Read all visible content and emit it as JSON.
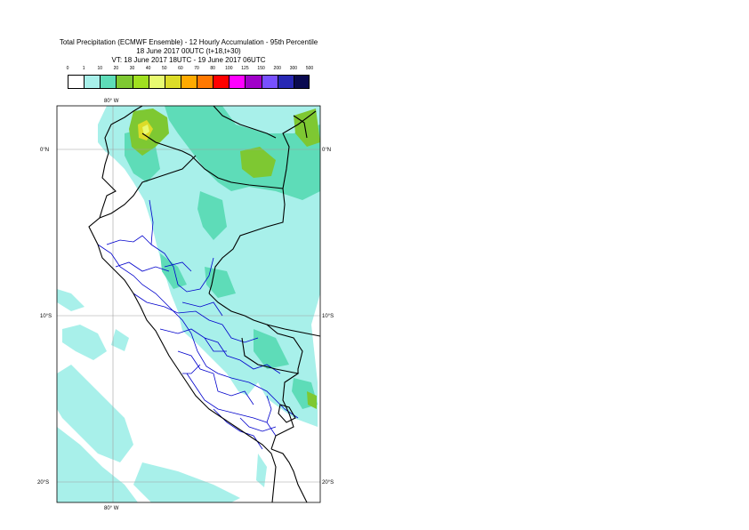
{
  "title": {
    "line1": "Total Precipitation (ECMWF Ensemble) - 12 Hourly Accumulation - 95th Percentile",
    "line2": "18 June 2017 00UTC (t+18,t+30)",
    "line3": "VT: 18 June 2017 18UTC - 19 June 2017 06UTC"
  },
  "legend": {
    "ticks": [
      "0",
      "1",
      "10",
      "20",
      "30",
      "40",
      "50",
      "60",
      "70",
      "80",
      "100",
      "125",
      "150",
      "200",
      "300",
      "500"
    ],
    "colors": [
      "#ffffff",
      "#a8f0ea",
      "#5edcb8",
      "#7ec832",
      "#a0e020",
      "#e8fa70",
      "#dcdc28",
      "#ffaa00",
      "#ff7800",
      "#ff0000",
      "#ff00ff",
      "#a000c8",
      "#7850ff",
      "#2828b4",
      "#0a0a50"
    ]
  },
  "axes": {
    "lon_top": "80° W",
    "lon_bottom": "80° W",
    "lat_0": "0°N",
    "lat_10": "10°S",
    "lat_20": "20°S",
    "lat_0_right": "0°N",
    "lat_10_right": "10°S",
    "lat_20_right": "20°S"
  },
  "map": {
    "extent": {
      "lon_min": -83.5,
      "lon_max": -67.5,
      "lat_min": -21.2,
      "lat_max": 2.7
    },
    "colors": {
      "land_boundary": "#000000",
      "admin_boundary": "#0000cc",
      "grid": "#a0a0a0"
    }
  }
}
